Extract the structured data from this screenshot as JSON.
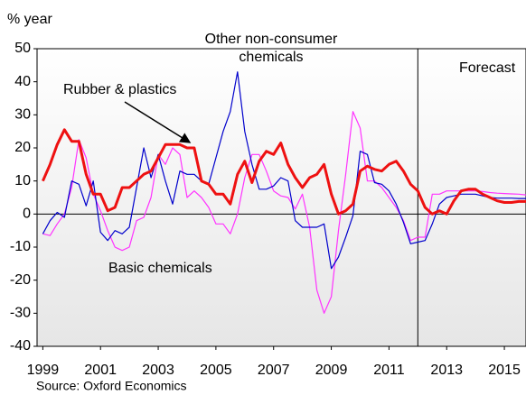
{
  "chart_data": {
    "type": "line",
    "y_label": "% year",
    "source": "Source: Oxford Economics",
    "annotations": {
      "other": [
        "Other non-consumer",
        "chemicals"
      ],
      "rubber": "Rubber & plastics",
      "basic": "Basic chemicals",
      "forecast": "Forecast"
    },
    "forecast_start": 2012,
    "x": [
      1999,
      1999.25,
      1999.5,
      1999.75,
      2000,
      2000.25,
      2000.5,
      2000.75,
      2001,
      2001.25,
      2001.5,
      2001.75,
      2002,
      2002.25,
      2002.5,
      2002.75,
      2003,
      2003.25,
      2003.5,
      2003.75,
      2004,
      2004.25,
      2004.5,
      2004.75,
      2005,
      2005.25,
      2005.5,
      2005.75,
      2006,
      2006.25,
      2006.5,
      2006.75,
      2007,
      2007.25,
      2007.5,
      2007.75,
      2008,
      2008.25,
      2008.5,
      2008.75,
      2009,
      2009.25,
      2009.5,
      2009.75,
      2010,
      2010.25,
      2010.5,
      2010.75,
      2011,
      2011.25,
      2011.5,
      2011.75,
      2012,
      2012.25,
      2012.5,
      2012.75,
      2013,
      2013.25,
      2013.5,
      2013.75,
      2014,
      2014.25,
      2014.5,
      2014.75,
      2015,
      2015.25,
      2015.5,
      2015.75
    ],
    "series": [
      {
        "name": "Basic chemicals",
        "color": "#ff33ff",
        "width": 1.2,
        "values": [
          -6,
          -6.5,
          -3,
          0,
          8,
          22.5,
          17,
          6,
          1,
          -5,
          -10,
          -11,
          -10,
          -2,
          -1,
          5,
          18,
          15,
          20,
          18,
          5,
          7,
          5,
          2,
          -3,
          -3,
          -6,
          0,
          11,
          18,
          18,
          13,
          7,
          5.5,
          5,
          1.5,
          6,
          -4,
          -23,
          -30,
          -25,
          -5,
          12,
          31,
          26,
          10,
          10,
          8,
          5,
          2,
          -2,
          -8,
          -7,
          -7,
          6,
          6,
          7,
          7,
          7,
          7,
          7,
          6.8,
          6.5,
          6.3,
          6.2,
          6.1,
          6,
          5.8
        ]
      },
      {
        "name": "Other non-consumer chemicals",
        "color": "#0000cc",
        "width": 1.2,
        "values": [
          -6,
          -2,
          0.5,
          -1,
          10,
          9,
          2.5,
          10,
          -5.5,
          -8,
          -5,
          -6,
          -4,
          8,
          20,
          11,
          18,
          10,
          3,
          13,
          12,
          12,
          10,
          9,
          17,
          25,
          31,
          43,
          25,
          15,
          7.5,
          7.5,
          8.5,
          11,
          10,
          -2,
          -4,
          -4,
          -4,
          -3,
          -16.5,
          -13,
          -7,
          -0.5,
          19,
          18,
          9.5,
          9,
          7,
          3,
          -2.5,
          -9,
          -8.5,
          -8,
          -3,
          3,
          5,
          5.5,
          6,
          6,
          6,
          5.5,
          5,
          4.8,
          4.8,
          4.8,
          4.7,
          4.7
        ]
      },
      {
        "name": "Rubber & plastics",
        "color": "#ee1111",
        "width": 3,
        "values": [
          10,
          15,
          21,
          25.5,
          22,
          22,
          12,
          6,
          6,
          1,
          2,
          8,
          8,
          10,
          12,
          13,
          17,
          21,
          21,
          21,
          20,
          20,
          10,
          9,
          6,
          6,
          3,
          12,
          16,
          9.5,
          16,
          19,
          18,
          21.5,
          15,
          11,
          8,
          11,
          12,
          15,
          6,
          0,
          1,
          3,
          13,
          14.5,
          13.5,
          13,
          15,
          16,
          13,
          9,
          7,
          2,
          0,
          1,
          0,
          4,
          7,
          7.5,
          7.5,
          6,
          5,
          4,
          3.5,
          3.5,
          3.8,
          3.8
        ]
      }
    ],
    "xlim": [
      1998.8,
      2015.75
    ],
    "xticks": [
      1999,
      2001,
      2003,
      2005,
      2007,
      2009,
      2011,
      2013,
      2015
    ],
    "ylim": [
      -40,
      50
    ],
    "yticks": [
      -40,
      -30,
      -20,
      -10,
      0,
      10,
      20,
      30,
      40,
      50
    ]
  }
}
